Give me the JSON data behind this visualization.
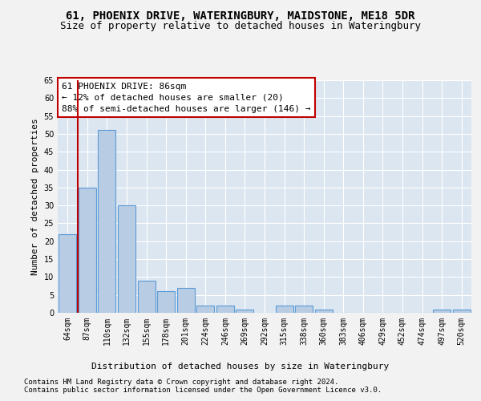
{
  "title": "61, PHOENIX DRIVE, WATERINGBURY, MAIDSTONE, ME18 5DR",
  "subtitle": "Size of property relative to detached houses in Wateringbury",
  "xlabel": "Distribution of detached houses by size in Wateringbury",
  "ylabel": "Number of detached properties",
  "footnote1": "Contains HM Land Registry data © Crown copyright and database right 2024.",
  "footnote2": "Contains public sector information licensed under the Open Government Licence v3.0.",
  "annotation_line1": "61 PHOENIX DRIVE: 86sqm",
  "annotation_line2": "← 12% of detached houses are smaller (20)",
  "annotation_line3": "88% of semi-detached houses are larger (146) →",
  "bar_categories": [
    "64sqm",
    "87sqm",
    "110sqm",
    "132sqm",
    "155sqm",
    "178sqm",
    "201sqm",
    "224sqm",
    "246sqm",
    "269sqm",
    "292sqm",
    "315sqm",
    "338sqm",
    "360sqm",
    "383sqm",
    "406sqm",
    "429sqm",
    "452sqm",
    "474sqm",
    "497sqm",
    "520sqm"
  ],
  "bar_values": [
    22,
    35,
    51,
    30,
    9,
    6,
    7,
    2,
    2,
    1,
    0,
    2,
    2,
    1,
    0,
    0,
    0,
    0,
    0,
    1,
    1
  ],
  "bar_color": "#b8cce4",
  "bar_edge_color": "#5b9bd5",
  "vline_color": "#c00000",
  "vline_x_index": 1,
  "ylim": [
    0,
    65
  ],
  "yticks": [
    0,
    5,
    10,
    15,
    20,
    25,
    30,
    35,
    40,
    45,
    50,
    55,
    60,
    65
  ],
  "background_color": "#dce6f1",
  "grid_color": "#ffffff",
  "fig_background": "#f2f2f2",
  "title_fontsize": 10,
  "subtitle_fontsize": 9,
  "axis_label_fontsize": 8,
  "tick_fontsize": 7,
  "annotation_fontsize": 8,
  "footnote_fontsize": 6.5
}
